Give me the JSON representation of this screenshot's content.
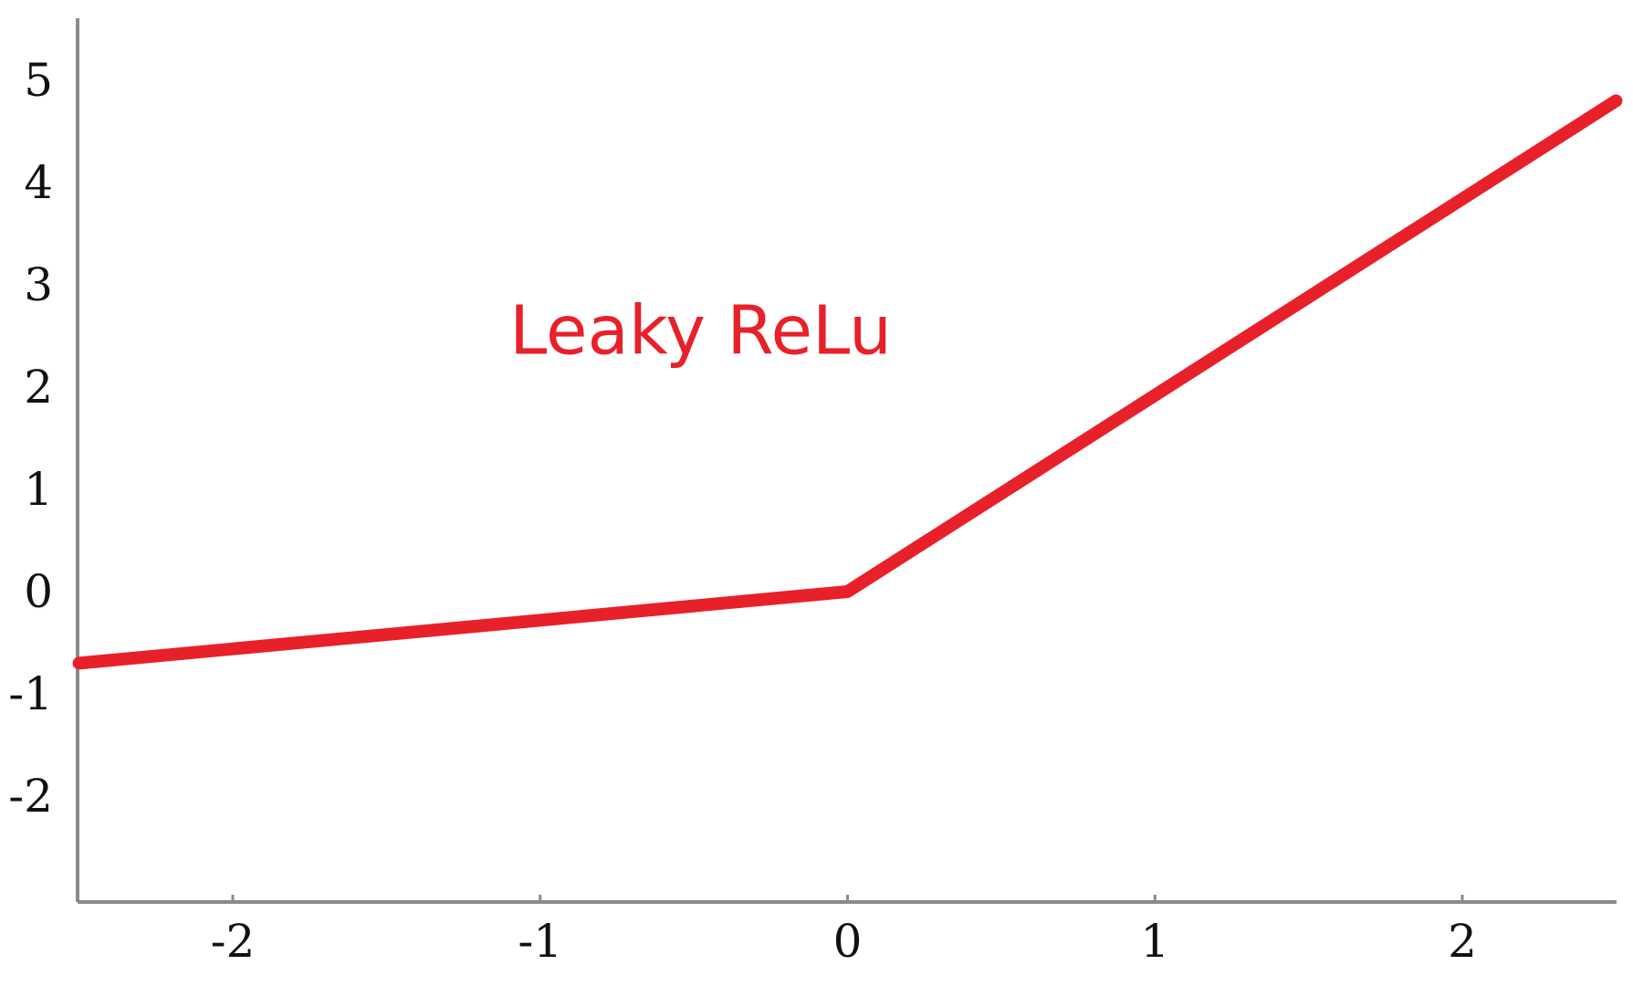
{
  "colors": {
    "line": "#e8202a",
    "axis": "#8a8a8a",
    "text": "#111111",
    "background": "#ffffff"
  },
  "chart_data": {
    "type": "line",
    "title": "",
    "xlabel": "",
    "ylabel": "",
    "xlim": [
      -2.5,
      2.5
    ],
    "ylim": [
      -3,
      5.5
    ],
    "x_ticks": [
      -2,
      -1,
      0,
      1,
      2
    ],
    "x_tick_labels": [
      "-2",
      "-1",
      "0",
      "1",
      "2"
    ],
    "y_ticks": [
      5,
      4,
      3,
      2,
      1,
      0,
      -1,
      -2
    ],
    "y_tick_labels": [
      "5",
      "4",
      "3",
      "2",
      "1",
      "0",
      "-1",
      "-2"
    ],
    "grid": false,
    "series": [
      {
        "color": "#e8202a",
        "x": [
          -2.5,
          0,
          2.5
        ],
        "y": [
          -0.7,
          0,
          4.8
        ]
      }
    ],
    "annotations": [
      {
        "text": "Leaky ReLu",
        "x": -1.1,
        "y": 2.55,
        "color": "#e8202a"
      }
    ]
  }
}
